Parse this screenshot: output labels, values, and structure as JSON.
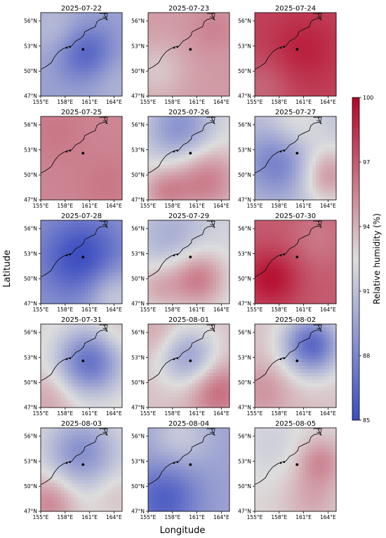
{
  "chart_data": {
    "type": "heatmap",
    "xlabel": "Longitude",
    "ylabel": "Latitude",
    "x_ticks": [
      "155°E",
      "158°E",
      "161°E",
      "164°E"
    ],
    "y_ticks": [
      "47°N",
      "50°N",
      "53°N",
      "56°N"
    ],
    "xlim": [
      155,
      165
    ],
    "ylim": [
      47,
      57
    ],
    "colorbar": {
      "label": "Relative humidity (%)",
      "range": [
        85,
        100
      ],
      "ticks": [
        "85",
        "88",
        "91",
        "94",
        "97",
        "100"
      ],
      "colormap": "coolwarm",
      "low_color": "#3b4cc0",
      "mid_color": "#dddddd",
      "high_color": "#b40426"
    },
    "panels": [
      {
        "date": "2025-07-22",
        "base": 89.5,
        "blobs": [
          [
            160.5,
            52.2,
            2.5,
            -3.5
          ],
          [
            157,
            55,
            2.5,
            1.5
          ],
          [
            164,
            49,
            2.5,
            1.0
          ]
        ]
      },
      {
        "date": "2025-07-23",
        "base": 94.8,
        "blobs": [
          [
            156,
            50,
            2.5,
            -1.5
          ],
          [
            163,
            55,
            2,
            0.8
          ]
        ]
      },
      {
        "date": "2025-07-24",
        "base": 97.8,
        "blobs": [
          [
            161,
            52.5,
            3,
            1.2
          ],
          [
            156,
            48,
            2.5,
            -1.2
          ]
        ]
      },
      {
        "date": "2025-07-25",
        "base": 95.5,
        "blobs": [
          [
            157,
            55,
            2.5,
            0.5
          ],
          [
            163,
            49,
            2.5,
            0.5
          ]
        ]
      },
      {
        "date": "2025-07-26",
        "base": 92.5,
        "blobs": [
          [
            159,
            55.5,
            3,
            -4.0
          ],
          [
            162,
            49.5,
            3,
            3.5
          ],
          [
            157,
            48,
            2,
            2.5
          ]
        ]
      },
      {
        "date": "2025-07-27",
        "base": 91.0,
        "blobs": [
          [
            158,
            51.5,
            3,
            -3.5
          ],
          [
            164,
            50,
            2.5,
            4.0
          ],
          [
            160,
            56,
            2.5,
            2.0
          ]
        ]
      },
      {
        "date": "2025-07-28",
        "base": 89.0,
        "blobs": [
          [
            160,
            52.5,
            3.5,
            -4.0
          ],
          [
            164,
            48,
            2.5,
            3.0
          ]
        ]
      },
      {
        "date": "2025-07-29",
        "base": 92.0,
        "blobs": [
          [
            161,
            50,
            2.5,
            4.0
          ],
          [
            158,
            55,
            3,
            -2.0
          ],
          [
            156,
            49,
            2,
            2.0
          ]
        ]
      },
      {
        "date": "2025-07-30",
        "base": 97.0,
        "blobs": [
          [
            157,
            50,
            2.5,
            2.5
          ],
          [
            163,
            55,
            2.5,
            -1.0
          ]
        ]
      },
      {
        "date": "2025-07-31",
        "base": 93.0,
        "blobs": [
          [
            161,
            52.5,
            2.8,
            -6.0
          ],
          [
            156,
            48,
            2.5,
            1.5
          ],
          [
            164,
            56,
            2,
            1.0
          ]
        ]
      },
      {
        "date": "2025-08-01",
        "base": 93.5,
        "blobs": [
          [
            160,
            53,
            2.5,
            -4.0
          ],
          [
            163.5,
            49,
            2.5,
            3.0
          ],
          [
            156,
            56,
            2,
            1.0
          ]
        ]
      },
      {
        "date": "2025-08-02",
        "base": 93.5,
        "blobs": [
          [
            162,
            54.5,
            2.5,
            -7.0
          ],
          [
            156,
            49,
            2.5,
            1.5
          ]
        ]
      },
      {
        "date": "2025-08-03",
        "base": 92.5,
        "blobs": [
          [
            160,
            54,
            3,
            -4.0
          ],
          [
            156,
            48,
            2.5,
            3.0
          ],
          [
            164,
            49,
            2,
            1.0
          ]
        ]
      },
      {
        "date": "2025-08-04",
        "base": 89.5,
        "blobs": [
          [
            157,
            48.5,
            3,
            -3.5
          ],
          [
            159,
            56,
            2.5,
            2.0
          ]
        ]
      },
      {
        "date": "2025-08-05",
        "base": 92.8,
        "blobs": [
          [
            163,
            53,
            2,
            2.5
          ],
          [
            162,
            48.5,
            2.5,
            1.5
          ],
          [
            157,
            55,
            3,
            -1.0
          ]
        ]
      }
    ],
    "coastline_lonlat": [
      [
        155.0,
        50.2
      ],
      [
        155.6,
        50.5
      ],
      [
        156.3,
        51.0
      ],
      [
        156.7,
        51.7
      ],
      [
        157.2,
        52.3
      ],
      [
        157.8,
        52.7
      ],
      [
        158.3,
        52.9
      ],
      [
        158.8,
        53.0
      ],
      [
        159.3,
        53.6
      ],
      [
        159.9,
        53.9
      ],
      [
        160.3,
        54.3
      ],
      [
        160.4,
        54.7
      ],
      [
        161.0,
        55.0
      ],
      [
        161.7,
        55.3
      ],
      [
        161.9,
        55.9
      ],
      [
        162.3,
        56.2
      ],
      [
        162.9,
        56.3
      ],
      [
        163.2,
        56.1
      ],
      [
        162.8,
        56.8
      ],
      [
        163.0,
        57.0
      ]
    ],
    "bay_lonlat": [
      [
        162.2,
        56.9
      ],
      [
        163.2,
        56.9
      ],
      [
        163.1,
        56.4
      ],
      [
        162.6,
        56.5
      ]
    ],
    "points_lonlat": [
      [
        158.6,
        52.9
      ],
      [
        158.2,
        52.8
      ],
      [
        160.2,
        52.6
      ]
    ]
  }
}
